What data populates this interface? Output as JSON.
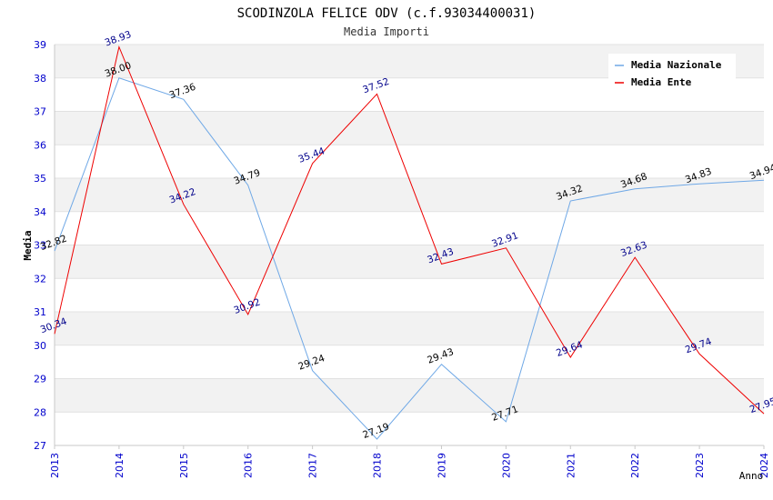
{
  "chart_data": {
    "type": "line",
    "title": "SCODINZOLA FELICE ODV (c.f.93034400031)",
    "subtitle": "Media Importi",
    "xlabel": "Anno",
    "ylabel": "Media",
    "ylim": [
      27,
      39
    ],
    "yticks": [
      "27",
      "28",
      "29",
      "30",
      "31",
      "32",
      "33",
      "34",
      "35",
      "36",
      "37",
      "38",
      "39"
    ],
    "categories": [
      "2013",
      "2014",
      "2015",
      "2016",
      "2017",
      "2018",
      "2019",
      "2020",
      "2021",
      "2022",
      "2023",
      "2024"
    ],
    "grid": true,
    "legend_position": "top-right",
    "series": [
      {
        "name": "Media Nazionale",
        "color": "#6fa8e6",
        "label_color": "#000000",
        "values": [
          32.82,
          38.0,
          37.36,
          34.79,
          29.24,
          27.19,
          29.43,
          27.71,
          34.32,
          34.68,
          34.83,
          34.94
        ],
        "labels": [
          "32.82",
          "38.00",
          "37.36",
          "34.79",
          "29.24",
          "27.19",
          "29.43",
          "27.71",
          "34.32",
          "34.68",
          "34.83",
          "34.94"
        ]
      },
      {
        "name": "Media Ente",
        "color": "#ee0000",
        "label_color": "#00008b",
        "values": [
          30.34,
          38.93,
          34.22,
          30.92,
          35.44,
          37.52,
          32.43,
          32.91,
          29.64,
          32.63,
          29.74,
          27.95
        ],
        "labels": [
          "30.34",
          "38.93",
          "34.22",
          "30.92",
          "35.44",
          "37.52",
          "32.43",
          "32.91",
          "29.64",
          "32.63",
          "29.74",
          "27.95"
        ]
      }
    ]
  }
}
